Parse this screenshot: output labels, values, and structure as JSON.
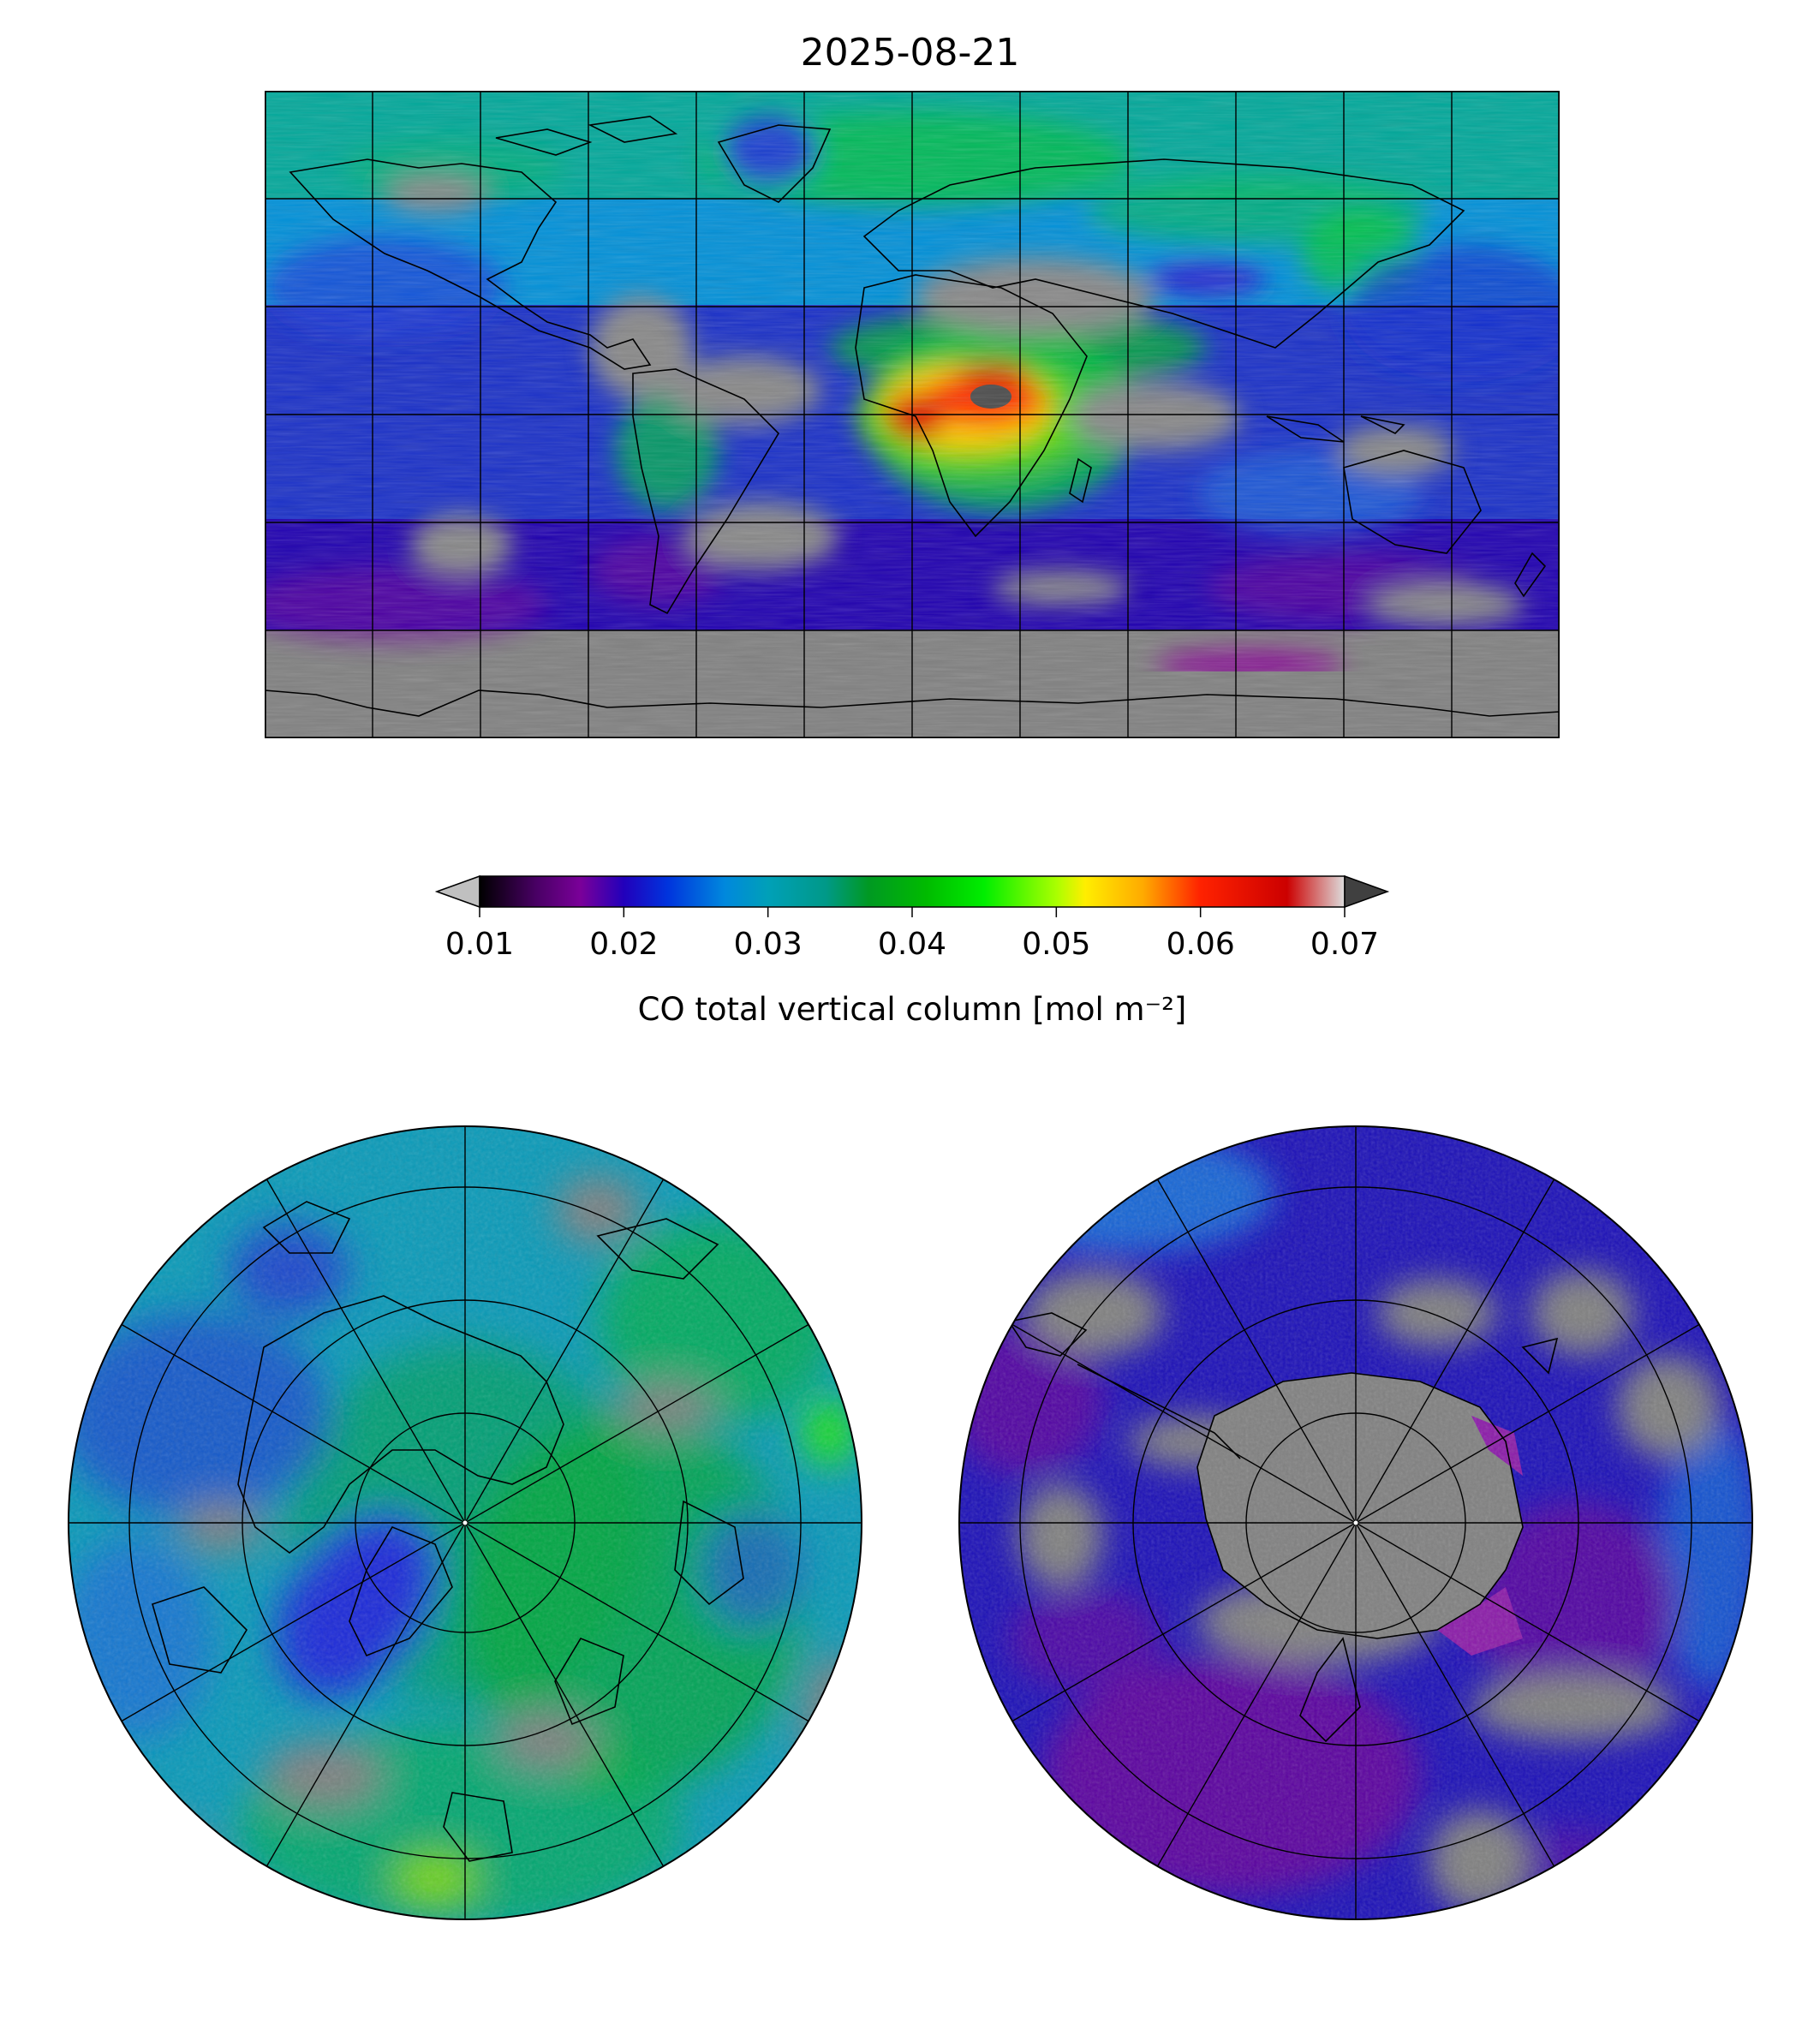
{
  "title": "2025-08-21",
  "colorbar": {
    "label": "CO total vertical column [mol m⁻²]",
    "ticks": [
      "0.01",
      "0.02",
      "0.03",
      "0.04",
      "0.05",
      "0.06",
      "0.07"
    ],
    "range": [
      0.01,
      0.07
    ],
    "extend": "both",
    "under_color": "#c0c0c0",
    "over_color": "#404040",
    "stops": [
      {
        "v": 0.01,
        "c": "#000000"
      },
      {
        "v": 0.014,
        "c": "#4a0066"
      },
      {
        "v": 0.017,
        "c": "#7a0099"
      },
      {
        "v": 0.02,
        "c": "#2200bb"
      },
      {
        "v": 0.023,
        "c": "#0033dd"
      },
      {
        "v": 0.027,
        "c": "#0088dd"
      },
      {
        "v": 0.03,
        "c": "#00a0b8"
      },
      {
        "v": 0.034,
        "c": "#009988"
      },
      {
        "v": 0.037,
        "c": "#009922"
      },
      {
        "v": 0.041,
        "c": "#00bb00"
      },
      {
        "v": 0.045,
        "c": "#00ee00"
      },
      {
        "v": 0.05,
        "c": "#aaff00"
      },
      {
        "v": 0.052,
        "c": "#ffee00"
      },
      {
        "v": 0.056,
        "c": "#ffaa00"
      },
      {
        "v": 0.06,
        "c": "#ff2200"
      },
      {
        "v": 0.066,
        "c": "#cc0000"
      },
      {
        "v": 0.07,
        "c": "#dddddd"
      }
    ]
  },
  "colors": {
    "missing": "#808080",
    "coastline": "#000000",
    "gridline": "#000000"
  },
  "maps": [
    {
      "name": "global",
      "projection": "plate-carree",
      "extent": [
        -180,
        180,
        -90,
        90
      ]
    },
    {
      "name": "north-polar",
      "projection": "north-polar-stereographic"
    },
    {
      "name": "south-polar",
      "projection": "south-polar-stereographic"
    }
  ]
}
